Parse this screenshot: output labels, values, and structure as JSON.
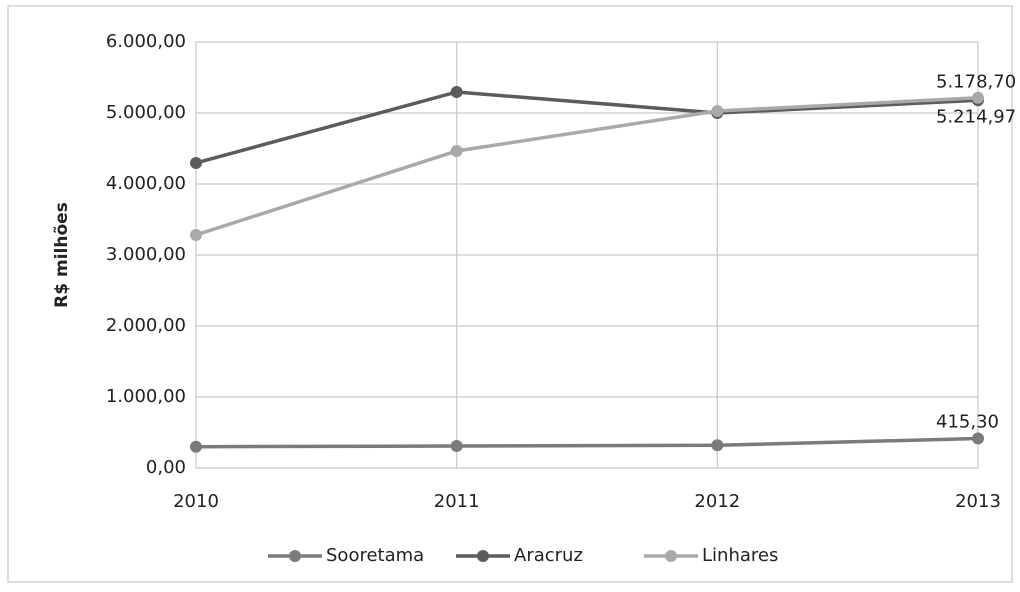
{
  "chart_data": {
    "type": "line",
    "y_label": "R$ milhões",
    "categories": [
      "2010",
      "2011",
      "2012",
      "2013"
    ],
    "series": [
      {
        "name": "Sooretama",
        "color": "#7b7b7b",
        "values": [
          300,
          310,
          320,
          415.3
        ],
        "value_labels": [
          null,
          null,
          null,
          "415,30"
        ]
      },
      {
        "name": "Aracruz",
        "color": "#5c5c5c",
        "values": [
          4296,
          5296,
          5000,
          5178.7
        ],
        "value_labels": [
          null,
          null,
          null,
          "5.178,70"
        ]
      },
      {
        "name": "Linhares",
        "color": "#a9a9a9",
        "values": [
          3282,
          4465,
          5028,
          5214.97
        ],
        "value_labels": [
          null,
          null,
          null,
          "5.214,97"
        ]
      }
    ],
    "ylim": [
      0,
      6000
    ],
    "yticks": [
      {
        "value": 0,
        "label": "0,00"
      },
      {
        "value": 1000,
        "label": "1.000,00"
      },
      {
        "value": 2000,
        "label": "2.000,00"
      },
      {
        "value": 3000,
        "label": "3.000,00"
      },
      {
        "value": 4000,
        "label": "4.000,00"
      },
      {
        "value": 5000,
        "label": "5.000,00"
      },
      {
        "value": 6000,
        "label": "6.000,00"
      }
    ],
    "grid": true,
    "legend": "bottom"
  }
}
